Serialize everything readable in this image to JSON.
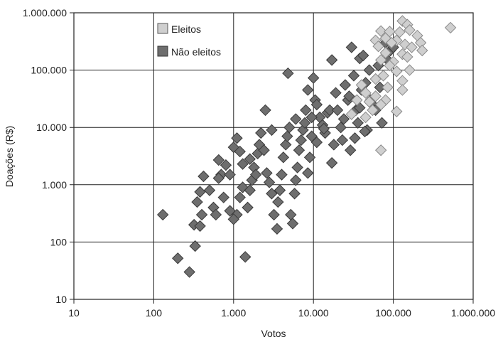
{
  "chart_data": {
    "type": "scatter",
    "xlabel": "Votos",
    "ylabel": "Doações (R$)",
    "xscale": "log",
    "yscale": "log",
    "xlim": [
      10,
      1000000
    ],
    "ylim": [
      10,
      1000000
    ],
    "xticks": [
      10,
      100,
      1000,
      10000,
      100000,
      1000000
    ],
    "yticks": [
      10,
      100,
      1000,
      10000,
      100000,
      1000000
    ],
    "xtick_labels": [
      "10",
      "100",
      "1.000",
      "10.000",
      "100.000",
      "1.000.000"
    ],
    "ytick_labels": [
      "10",
      "100",
      "1.000",
      "10.000",
      "100.000",
      "1.000.000"
    ],
    "grid": true,
    "legend_position": "top-left",
    "marker": "diamond",
    "series": [
      {
        "name": "Eleitos",
        "color": "#cfcfcf",
        "stroke": "#8a8a8a",
        "points": [
          [
            130000,
            720000
          ],
          [
            150000,
            620000
          ],
          [
            160000,
            500000
          ],
          [
            520000,
            550000
          ],
          [
            70000,
            480000
          ],
          [
            90000,
            470000
          ],
          [
            120000,
            460000
          ],
          [
            200000,
            400000
          ],
          [
            60000,
            330000
          ],
          [
            80000,
            360000
          ],
          [
            110000,
            330000
          ],
          [
            220000,
            300000
          ],
          [
            65000,
            260000
          ],
          [
            95000,
            300000
          ],
          [
            140000,
            280000
          ],
          [
            170000,
            250000
          ],
          [
            230000,
            220000
          ],
          [
            80000,
            200000
          ],
          [
            130000,
            190000
          ],
          [
            150000,
            170000
          ],
          [
            70000,
            150000
          ],
          [
            100000,
            140000
          ],
          [
            160000,
            100000
          ],
          [
            110000,
            95000
          ],
          [
            75000,
            80000
          ],
          [
            60000,
            70000
          ],
          [
            130000,
            65000
          ],
          [
            85000,
            50000
          ],
          [
            130000,
            45000
          ],
          [
            45000,
            40000
          ],
          [
            60000,
            35000
          ],
          [
            80000,
            30000
          ],
          [
            35000,
            30000
          ],
          [
            50000,
            28000
          ],
          [
            70000,
            25000
          ],
          [
            55000,
            20000
          ],
          [
            110000,
            19000
          ],
          [
            30000,
            17000
          ],
          [
            45000,
            15000
          ],
          [
            70000,
            4000
          ],
          [
            40000,
            55000
          ],
          [
            90000,
            120000
          ]
        ]
      },
      {
        "name": "Não eleitos",
        "color": "#6e6e6e",
        "stroke": "#3a3a3a",
        "points": [
          [
            130,
            300
          ],
          [
            200,
            52
          ],
          [
            280,
            30
          ],
          [
            330,
            85
          ],
          [
            320,
            200
          ],
          [
            380,
            190
          ],
          [
            400,
            300
          ],
          [
            350,
            500
          ],
          [
            380,
            750
          ],
          [
            420,
            1400
          ],
          [
            500,
            800
          ],
          [
            560,
            400
          ],
          [
            600,
            300
          ],
          [
            700,
            1500
          ],
          [
            650,
            2700
          ],
          [
            800,
            2200
          ],
          [
            900,
            1500
          ],
          [
            1000,
            4500
          ],
          [
            1100,
            6500
          ],
          [
            1200,
            3800
          ],
          [
            1300,
            2300
          ],
          [
            900,
            350
          ],
          [
            1100,
            300
          ],
          [
            1200,
            600
          ],
          [
            1300,
            900
          ],
          [
            1400,
            55
          ],
          [
            1500,
            400
          ],
          [
            1600,
            800
          ],
          [
            1700,
            1200
          ],
          [
            1800,
            2000
          ],
          [
            1900,
            1500
          ],
          [
            2000,
            3500
          ],
          [
            2100,
            5000
          ],
          [
            2200,
            8000
          ],
          [
            2500,
            20000
          ],
          [
            2600,
            1600
          ],
          [
            2800,
            1100
          ],
          [
            3000,
            700
          ],
          [
            3200,
            300
          ],
          [
            3500,
            170
          ],
          [
            3600,
            500
          ],
          [
            3800,
            800
          ],
          [
            4000,
            1500
          ],
          [
            4200,
            3000
          ],
          [
            4500,
            5000
          ],
          [
            4700,
            7000
          ],
          [
            4800,
            88000
          ],
          [
            5000,
            10000
          ],
          [
            5200,
            300
          ],
          [
            5500,
            210
          ],
          [
            5800,
            700
          ],
          [
            6000,
            1200
          ],
          [
            6300,
            2000
          ],
          [
            6600,
            4000
          ],
          [
            7000,
            6000
          ],
          [
            7400,
            9000
          ],
          [
            7800,
            12000
          ],
          [
            8000,
            20000
          ],
          [
            8500,
            1600
          ],
          [
            9000,
            3000
          ],
          [
            9500,
            7000
          ],
          [
            10000,
            73000
          ],
          [
            10500,
            30000
          ],
          [
            11000,
            25000
          ],
          [
            12000,
            15000
          ],
          [
            13000,
            11000
          ],
          [
            14000,
            8000
          ],
          [
            15000,
            18000
          ],
          [
            16000,
            20000
          ],
          [
            17000,
            2400
          ],
          [
            18000,
            5000
          ],
          [
            19000,
            40000
          ],
          [
            20000,
            20000
          ],
          [
            22000,
            10000
          ],
          [
            23000,
            6000
          ],
          [
            25000,
            55000
          ],
          [
            27000,
            30000
          ],
          [
            29000,
            4000
          ],
          [
            30000,
            250000
          ],
          [
            32000,
            80000
          ],
          [
            34000,
            20000
          ],
          [
            36000,
            12000
          ],
          [
            38000,
            160000
          ],
          [
            40000,
            45000
          ],
          [
            42000,
            180000
          ],
          [
            45000,
            60000
          ],
          [
            47000,
            9000
          ],
          [
            50000,
            100000
          ],
          [
            55000,
            25000
          ],
          [
            60000,
            20000
          ],
          [
            65000,
            120000
          ],
          [
            68000,
            50000
          ],
          [
            72000,
            12000
          ],
          [
            80000,
            300000
          ],
          [
            85000,
            150000
          ],
          [
            92000,
            220000
          ],
          [
            100000,
            250000
          ],
          [
            17000,
            150000
          ],
          [
            6000,
            14000
          ],
          [
            3000,
            9000
          ],
          [
            2400,
            4000
          ],
          [
            1600,
            2800
          ],
          [
            1000,
            250
          ],
          [
            650,
            1300
          ],
          [
            750,
            600
          ],
          [
            8500,
            45000
          ],
          [
            9500,
            15000
          ],
          [
            11000,
            5500
          ],
          [
            13500,
            9500
          ],
          [
            24000,
            14000
          ],
          [
            28000,
            35000
          ],
          [
            33000,
            6500
          ],
          [
            38000,
            22000
          ],
          [
            44000,
            8500
          ],
          [
            52000,
            30000
          ]
        ]
      }
    ]
  }
}
